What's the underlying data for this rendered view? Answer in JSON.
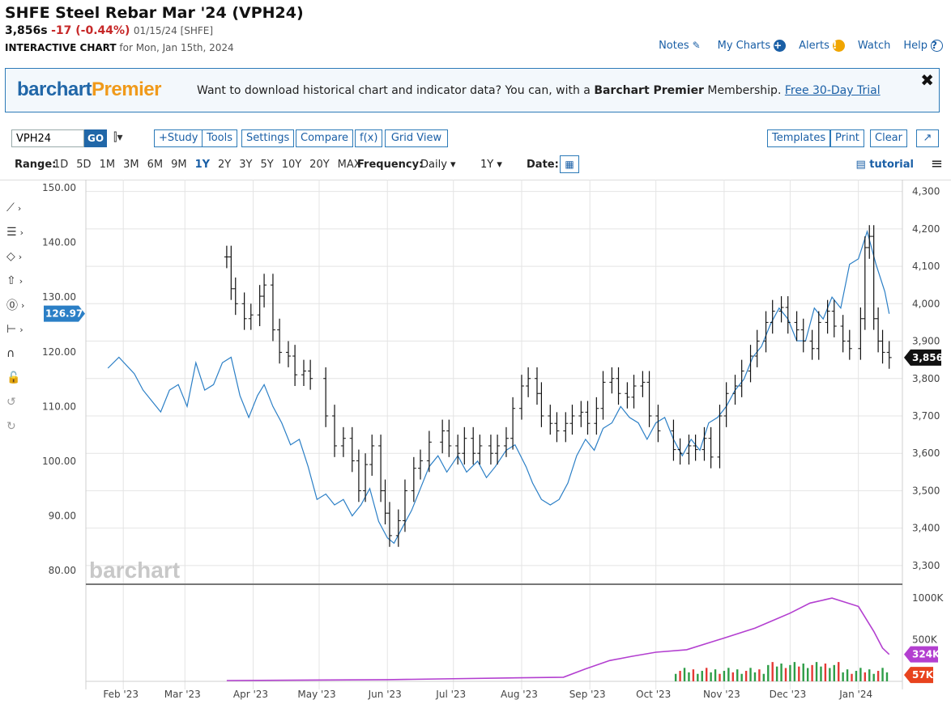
{
  "header": {
    "title": "SHFE Steel Rebar Mar '24 (VPH24)",
    "last": "3,856s",
    "change": "-17 (-0.44%)",
    "meta": "01/15/24 [SHFE]",
    "sub_bold": "INTERACTIVE CHART",
    "sub_rest": "for Mon, Jan 15th, 2024"
  },
  "toplinks": {
    "notes": "Notes",
    "notes_icon": "✎",
    "mycharts": "My Charts",
    "mycharts_icon": "+",
    "alerts": "Alerts",
    "alerts_icon": "!",
    "watch": "Watch",
    "help": "Help",
    "help_icon": "?"
  },
  "banner": {
    "logo_a": "barchart",
    "logo_b": "Premier",
    "text_before": "Want to download historical chart and indicator data? You can, with a ",
    "text_bold": "Barchart Premier",
    "text_after": " Membership. ",
    "link": "Free 30-Day Trial",
    "close": "✖"
  },
  "toolbar": {
    "symbol": "VPH24",
    "go": "GO",
    "bars_icon": "⫿▾",
    "study": "+Study",
    "tools": "Tools",
    "settings": "Settings",
    "compare": "Compare",
    "fx": "f(x)",
    "gridview": "Grid View",
    "templates": "Templates",
    "print": "Print",
    "clear": "Clear",
    "expand": "↗"
  },
  "range": {
    "label": "Range:",
    "items": [
      "1D",
      "5D",
      "1M",
      "3M",
      "6M",
      "9M",
      "1Y",
      "2Y",
      "3Y",
      "5Y",
      "10Y",
      "20Y",
      "MAX"
    ],
    "selected": "1Y",
    "frequency_label": "Frequency:",
    "frequency": "Daily ▾",
    "period": "1Y ▾",
    "date_label": "Date:",
    "calendar_icon": "▦",
    "tutorial": "▤ tutorial",
    "menu_icon": "≡"
  },
  "left_tools": [
    {
      "name": "line-tool-icon",
      "glyph": "⟋"
    },
    {
      "name": "fib-tool-icon",
      "glyph": "☰"
    },
    {
      "name": "shape-tool-icon",
      "glyph": "◇"
    },
    {
      "name": "arrow-tool-icon",
      "glyph": "⇧"
    },
    {
      "name": "marker-tool-icon",
      "glyph": "⓪"
    },
    {
      "name": "measure-tool-icon",
      "glyph": "⊢"
    },
    {
      "name": "magnet-icon",
      "glyph": "∩"
    },
    {
      "name": "lock-icon",
      "glyph": "🔓"
    },
    {
      "name": "undo-icon",
      "glyph": "↺"
    },
    {
      "name": "redo-icon",
      "glyph": "↻"
    }
  ],
  "chart_data": {
    "type": "line",
    "symbol": "VPH24",
    "watermark": "barchart",
    "x_ticks": [
      "Feb '23",
      "Mar '23",
      "Apr '23",
      "May '23",
      "Jun '23",
      "Jul '23",
      "Aug '23",
      "Sep '23",
      "Oct '23",
      "Nov '23",
      "Dec '23",
      "Jan '24"
    ],
    "y_right_ticks": [
      3300,
      3400,
      3500,
      3600,
      3700,
      3800,
      3900,
      4000,
      4100,
      4200,
      4300
    ],
    "y_right_labels": [
      "3,300",
      "3,400",
      "3,500",
      "3,600",
      "3,700",
      "3,800",
      "3,900",
      "4,000",
      "4,100",
      "4,200",
      "4,300"
    ],
    "y_right_range": [
      3250,
      4310
    ],
    "y_left_ticks": [
      80,
      90,
      100,
      110,
      120,
      130,
      140,
      150
    ],
    "y_left_labels": [
      "80.00",
      "90.00",
      "100.00",
      "110.00",
      "120.00",
      "130.00",
      "140.00",
      "150.00"
    ],
    "y_left_range": [
      77.5,
      150
    ],
    "last_price_label": "3,856",
    "last_price": 3856,
    "compare_label": "126.97",
    "compare_last": 126.97,
    "price_series": {
      "style": "ohlc",
      "color": "#111111",
      "points": [
        [
          "2023-03-20",
          4125
        ],
        [
          "2023-03-22",
          4040
        ],
        [
          "2023-03-24",
          4000
        ],
        [
          "2023-03-28",
          3960
        ],
        [
          "2023-03-31",
          3970
        ],
        [
          "2023-04-04",
          4020
        ],
        [
          "2023-04-06",
          4050
        ],
        [
          "2023-04-10",
          3930
        ],
        [
          "2023-04-13",
          3870
        ],
        [
          "2023-04-17",
          3860
        ],
        [
          "2023-04-20",
          3810
        ],
        [
          "2023-04-24",
          3820
        ],
        [
          "2023-04-27",
          3800
        ],
        [
          "2023-05-04",
          3700
        ],
        [
          "2023-05-08",
          3620
        ],
        [
          "2023-05-12",
          3640
        ],
        [
          "2023-05-16",
          3580
        ],
        [
          "2023-05-19",
          3500
        ],
        [
          "2023-05-22",
          3570
        ],
        [
          "2023-05-25",
          3620
        ],
        [
          "2023-05-29",
          3500
        ],
        [
          "2023-05-31",
          3440
        ],
        [
          "2023-06-02",
          3380
        ],
        [
          "2023-06-06",
          3420
        ],
        [
          "2023-06-09",
          3500
        ],
        [
          "2023-06-13",
          3560
        ],
        [
          "2023-06-16",
          3580
        ],
        [
          "2023-06-20",
          3630
        ],
        [
          "2023-06-26",
          3660
        ],
        [
          "2023-06-29",
          3620
        ],
        [
          "2023-07-03",
          3600
        ],
        [
          "2023-07-06",
          3640
        ],
        [
          "2023-07-10",
          3600
        ],
        [
          "2023-07-13",
          3620
        ],
        [
          "2023-07-18",
          3600
        ],
        [
          "2023-07-21",
          3620
        ],
        [
          "2023-07-25",
          3640
        ],
        [
          "2023-07-28",
          3720
        ],
        [
          "2023-08-01",
          3780
        ],
        [
          "2023-08-04",
          3800
        ],
        [
          "2023-08-08",
          3760
        ],
        [
          "2023-08-10",
          3700
        ],
        [
          "2023-08-14",
          3680
        ],
        [
          "2023-08-17",
          3660
        ],
        [
          "2023-08-21",
          3680
        ],
        [
          "2023-08-24",
          3700
        ],
        [
          "2023-08-28",
          3710
        ],
        [
          "2023-08-31",
          3680
        ],
        [
          "2023-09-04",
          3720
        ],
        [
          "2023-09-07",
          3790
        ],
        [
          "2023-09-11",
          3800
        ],
        [
          "2023-09-14",
          3760
        ],
        [
          "2023-09-18",
          3750
        ],
        [
          "2023-09-21",
          3780
        ],
        [
          "2023-09-25",
          3790
        ],
        [
          "2023-09-28",
          3700
        ],
        [
          "2023-10-02",
          3660
        ],
        [
          "2023-10-09",
          3610
        ],
        [
          "2023-10-12",
          3600
        ],
        [
          "2023-10-16",
          3620
        ],
        [
          "2023-10-19",
          3610
        ],
        [
          "2023-10-23",
          3640
        ],
        [
          "2023-10-26",
          3590
        ],
        [
          "2023-10-30",
          3700
        ],
        [
          "2023-11-02",
          3760
        ],
        [
          "2023-11-06",
          3780
        ],
        [
          "2023-11-09",
          3820
        ],
        [
          "2023-11-13",
          3860
        ],
        [
          "2023-11-16",
          3900
        ],
        [
          "2023-11-20",
          3950
        ],
        [
          "2023-11-23",
          3980
        ],
        [
          "2023-11-27",
          3990
        ],
        [
          "2023-11-30",
          3950
        ],
        [
          "2023-12-04",
          3930
        ],
        [
          "2023-12-07",
          3900
        ],
        [
          "2023-12-11",
          3880
        ],
        [
          "2023-12-14",
          3950
        ],
        [
          "2023-12-18",
          3980
        ],
        [
          "2023-12-21",
          3940
        ],
        [
          "2023-12-25",
          3900
        ],
        [
          "2023-12-28",
          3880
        ],
        [
          "2024-01-02",
          3960
        ],
        [
          "2024-01-04",
          4150
        ],
        [
          "2024-01-06",
          4180
        ],
        [
          "2024-01-08",
          3960
        ],
        [
          "2024-01-10",
          3900
        ],
        [
          "2024-01-12",
          3870
        ],
        [
          "2024-01-15",
          3856
        ]
      ]
    },
    "compare_series": {
      "style": "line",
      "color": "#2b7fc6",
      "points": [
        [
          "2023-01-25",
          117
        ],
        [
          "2023-01-30",
          119
        ],
        [
          "2023-02-06",
          116
        ],
        [
          "2023-02-10",
          113
        ],
        [
          "2023-02-14",
          111
        ],
        [
          "2023-02-18",
          109
        ],
        [
          "2023-02-22",
          113
        ],
        [
          "2023-02-26",
          114
        ],
        [
          "2023-03-02",
          110
        ],
        [
          "2023-03-06",
          118
        ],
        [
          "2023-03-10",
          113
        ],
        [
          "2023-03-14",
          114
        ],
        [
          "2023-03-18",
          118
        ],
        [
          "2023-03-22",
          119
        ],
        [
          "2023-03-26",
          112
        ],
        [
          "2023-03-30",
          108
        ],
        [
          "2023-04-03",
          112
        ],
        [
          "2023-04-06",
          114
        ],
        [
          "2023-04-10",
          110
        ],
        [
          "2023-04-14",
          107
        ],
        [
          "2023-04-18",
          103
        ],
        [
          "2023-04-22",
          104
        ],
        [
          "2023-04-26",
          99
        ],
        [
          "2023-04-30",
          93
        ],
        [
          "2023-05-04",
          94
        ],
        [
          "2023-05-08",
          92
        ],
        [
          "2023-05-12",
          93
        ],
        [
          "2023-05-16",
          90
        ],
        [
          "2023-05-20",
          92
        ],
        [
          "2023-05-24",
          95
        ],
        [
          "2023-05-28",
          89
        ],
        [
          "2023-06-01",
          86
        ],
        [
          "2023-06-04",
          85
        ],
        [
          "2023-06-08",
          88
        ],
        [
          "2023-06-12",
          91
        ],
        [
          "2023-06-16",
          95
        ],
        [
          "2023-06-20",
          99
        ],
        [
          "2023-06-24",
          101
        ],
        [
          "2023-06-28",
          98
        ],
        [
          "2023-07-03",
          101
        ],
        [
          "2023-07-07",
          98
        ],
        [
          "2023-07-12",
          100
        ],
        [
          "2023-07-16",
          97
        ],
        [
          "2023-07-20",
          99
        ],
        [
          "2023-07-25",
          102
        ],
        [
          "2023-07-29",
          103
        ],
        [
          "2023-08-03",
          99
        ],
        [
          "2023-08-06",
          96
        ],
        [
          "2023-08-10",
          93
        ],
        [
          "2023-08-14",
          92
        ],
        [
          "2023-08-18",
          93
        ],
        [
          "2023-08-22",
          96
        ],
        [
          "2023-08-26",
          101
        ],
        [
          "2023-08-30",
          104
        ],
        [
          "2023-09-03",
          102
        ],
        [
          "2023-09-07",
          106
        ],
        [
          "2023-09-11",
          107
        ],
        [
          "2023-09-15",
          110
        ],
        [
          "2023-09-19",
          108
        ],
        [
          "2023-09-23",
          107
        ],
        [
          "2023-09-27",
          104
        ],
        [
          "2023-10-01",
          107
        ],
        [
          "2023-10-05",
          108
        ],
        [
          "2023-10-09",
          104
        ],
        [
          "2023-10-13",
          101
        ],
        [
          "2023-10-17",
          104
        ],
        [
          "2023-10-21",
          102
        ],
        [
          "2023-10-25",
          107
        ],
        [
          "2023-10-29",
          108
        ],
        [
          "2023-11-02",
          110
        ],
        [
          "2023-11-06",
          113
        ],
        [
          "2023-11-10",
          115
        ],
        [
          "2023-11-14",
          119
        ],
        [
          "2023-11-18",
          121
        ],
        [
          "2023-11-22",
          125
        ],
        [
          "2023-11-26",
          128
        ],
        [
          "2023-11-30",
          126
        ],
        [
          "2023-12-04",
          122
        ],
        [
          "2023-12-08",
          122
        ],
        [
          "2023-12-12",
          128
        ],
        [
          "2023-12-16",
          126
        ],
        [
          "2023-12-20",
          130
        ],
        [
          "2023-12-24",
          128
        ],
        [
          "2023-12-28",
          136
        ],
        [
          "2024-01-01",
          137
        ],
        [
          "2024-01-05",
          142
        ],
        [
          "2024-01-09",
          136
        ],
        [
          "2024-01-13",
          131
        ],
        [
          "2024-01-15",
          126.97
        ]
      ]
    },
    "lower_panel": {
      "y_labels": [
        "1000K",
        "500K"
      ],
      "y_ticks": [
        1000000,
        500000
      ],
      "y_range": [
        0,
        1050000
      ],
      "open_interest_label": "324K",
      "open_interest_last": 324000,
      "volume_label": "57K",
      "volume_last": 57000,
      "open_interest": [
        [
          "2023-03-20",
          10000
        ],
        [
          "2023-06-01",
          20000
        ],
        [
          "2023-08-20",
          50000
        ],
        [
          "2023-08-30",
          150000
        ],
        [
          "2023-09-10",
          250000
        ],
        [
          "2023-09-20",
          300000
        ],
        [
          "2023-10-01",
          350000
        ],
        [
          "2023-10-15",
          380000
        ],
        [
          "2023-11-01",
          520000
        ],
        [
          "2023-11-15",
          640000
        ],
        [
          "2023-12-01",
          820000
        ],
        [
          "2023-12-10",
          940000
        ],
        [
          "2023-12-20",
          1000000
        ],
        [
          "2024-01-01",
          900000
        ],
        [
          "2024-01-08",
          600000
        ],
        [
          "2024-01-12",
          400000
        ],
        [
          "2024-01-15",
          324000
        ]
      ],
      "volume_up_color": "#2e9d47",
      "volume_down_color": "#e53935"
    }
  }
}
